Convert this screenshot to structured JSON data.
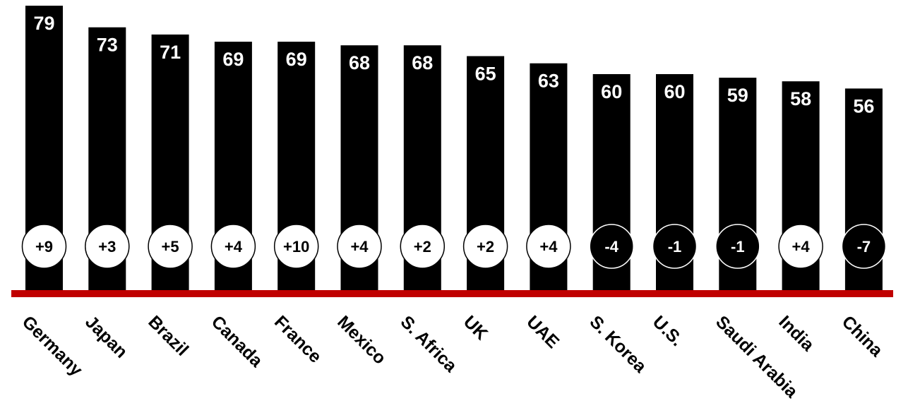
{
  "chart_data": {
    "type": "bar",
    "title": "",
    "xlabel": "",
    "ylabel": "",
    "ylim": [
      0,
      80
    ],
    "grid": false,
    "legend": "none",
    "categories": [
      "Germany",
      "Japan",
      "Brazil",
      "Canada",
      "France",
      "Mexico",
      "S. Africa",
      "UK",
      "UAE",
      "S. Korea",
      "U.S.",
      "Saudi Arabia",
      "India",
      "China"
    ],
    "values": [
      79,
      73,
      71,
      69,
      69,
      68,
      68,
      65,
      63,
      60,
      60,
      59,
      58,
      56
    ],
    "value_labels": [
      "79",
      "73",
      "71",
      "69",
      "69",
      "68",
      "68",
      "65",
      "63",
      "60",
      "60",
      "59",
      "58",
      "56"
    ],
    "changes": [
      9,
      3,
      5,
      4,
      10,
      4,
      2,
      2,
      4,
      -4,
      -1,
      -1,
      4,
      -7
    ],
    "change_labels": [
      "+9",
      "+3",
      "+5",
      "+4",
      "+10",
      "+4",
      "+2",
      "+2",
      "+4",
      "-4",
      "-1",
      "-1",
      "+4",
      "-7"
    ]
  },
  "colors": {
    "bar": "#000000",
    "baseline": "#c00000",
    "positive_circle_fill": "#ffffff",
    "positive_circle_text": "#000000",
    "negative_circle_fill": "#000000",
    "negative_circle_text": "#ffffff",
    "value_text": "#ffffff"
  }
}
